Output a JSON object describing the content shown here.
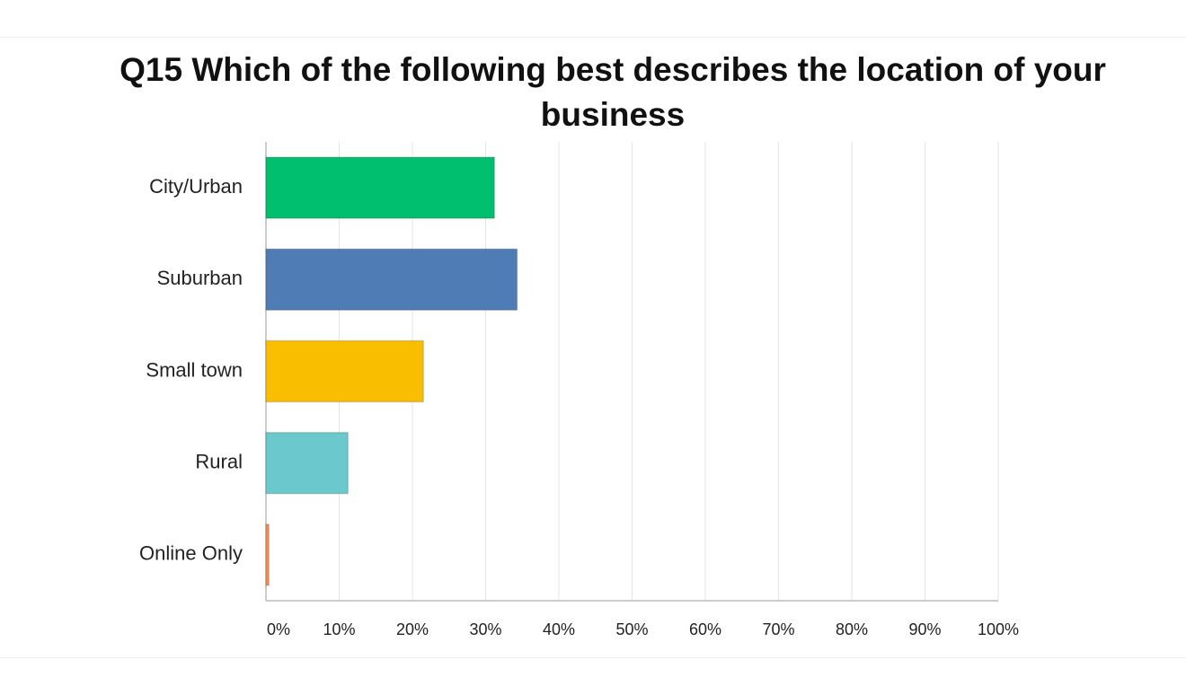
{
  "chart_data": {
    "type": "hbar",
    "title": "Q15 Which of the following best describes the location of your business",
    "categories": [
      "City/Urban",
      "Suburban",
      "Small town",
      "Rural",
      "Online Only"
    ],
    "values": [
      31.2,
      34.3,
      21.5,
      11.2,
      0.4
    ],
    "colors": [
      "#00bf6f",
      "#507cb6",
      "#f9be00",
      "#6bc8cd",
      "#ff8b4f"
    ],
    "xlim": [
      0,
      100
    ],
    "xticks": [
      {
        "value": 0,
        "label": "0%"
      },
      {
        "value": 10,
        "label": "10%"
      },
      {
        "value": 20,
        "label": "20%"
      },
      {
        "value": 30,
        "label": "30%"
      },
      {
        "value": 40,
        "label": "40%"
      },
      {
        "value": 50,
        "label": "50%"
      },
      {
        "value": 60,
        "label": "60%"
      },
      {
        "value": 70,
        "label": "70%"
      },
      {
        "value": 80,
        "label": "80%"
      },
      {
        "value": 90,
        "label": "90%"
      },
      {
        "value": 100,
        "label": "100%"
      }
    ],
    "grid": true
  }
}
